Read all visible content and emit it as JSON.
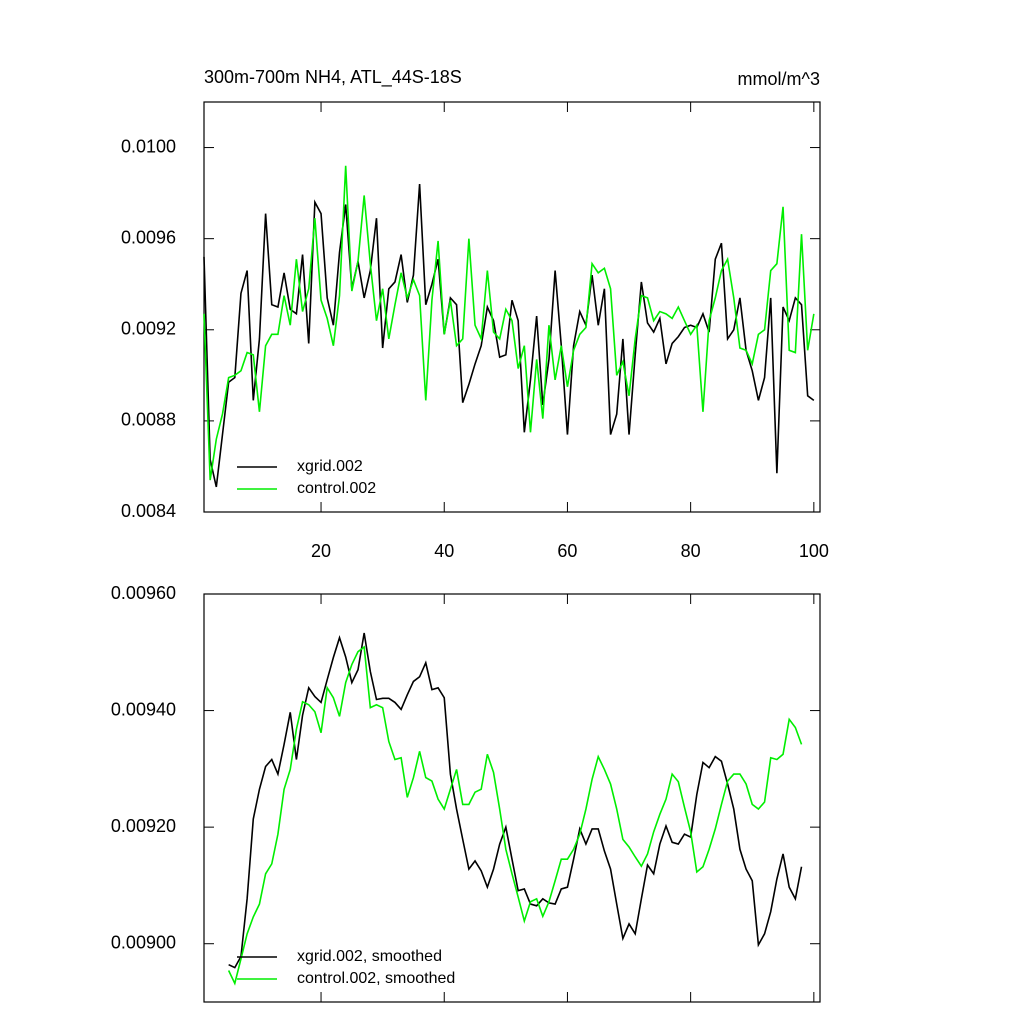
{
  "chart_data": [
    {
      "type": "line",
      "title": "300m-700m NH4, ATL_44S-18S",
      "units": "mmol/m^3",
      "x": [
        1,
        2,
        3,
        4,
        5,
        6,
        7,
        8,
        9,
        10,
        11,
        12,
        13,
        14,
        15,
        16,
        17,
        18,
        19,
        20,
        21,
        22,
        23,
        24,
        25,
        26,
        27,
        28,
        29,
        30,
        31,
        32,
        33,
        34,
        35,
        36,
        37,
        38,
        39,
        40,
        41,
        42,
        43,
        44,
        45,
        46,
        47,
        48,
        49,
        50,
        51,
        52,
        53,
        54,
        55,
        56,
        57,
        58,
        59,
        60,
        61,
        62,
        63,
        64,
        65,
        66,
        67,
        68,
        69,
        70,
        71,
        72,
        73,
        74,
        75,
        76,
        77,
        78,
        79,
        80,
        81,
        82,
        83,
        84,
        85,
        86,
        87,
        88,
        89,
        90,
        91,
        92,
        93,
        94,
        95,
        96,
        97,
        98,
        99,
        100
      ],
      "series": [
        {
          "name": "xgrid.002",
          "color": "#000000",
          "values": [
            0.00952,
            0.00863,
            0.00851,
            0.00874,
            0.00897,
            0.00899,
            0.00936,
            0.00946,
            0.00889,
            0.00916,
            0.00971,
            0.00931,
            0.0093,
            0.00945,
            0.00929,
            0.00927,
            0.00953,
            0.00914,
            0.00976,
            0.00971,
            0.00934,
            0.00922,
            0.00954,
            0.00975,
            0.00938,
            0.0095,
            0.00934,
            0.00946,
            0.00969,
            0.00912,
            0.00938,
            0.00941,
            0.00953,
            0.00932,
            0.00944,
            0.00984,
            0.00931,
            0.0094,
            0.00951,
            0.00918,
            0.00934,
            0.00931,
            0.00888,
            0.00896,
            0.00905,
            0.00913,
            0.0093,
            0.00924,
            0.00908,
            0.00909,
            0.00933,
            0.00924,
            0.00875,
            0.00898,
            0.00926,
            0.00887,
            0.00907,
            0.00946,
            0.00913,
            0.00874,
            0.00913,
            0.00928,
            0.00922,
            0.00944,
            0.00922,
            0.00938,
            0.00874,
            0.00883,
            0.00916,
            0.00874,
            0.00909,
            0.00941,
            0.00923,
            0.00919,
            0.00925,
            0.00905,
            0.00914,
            0.00917,
            0.00921,
            0.00922,
            0.00921,
            0.00927,
            0.00919,
            0.00951,
            0.00958,
            0.00916,
            0.0092,
            0.00934,
            0.00911,
            0.00902,
            0.00889,
            0.00899,
            0.00934,
            0.00857,
            0.0093,
            0.00924,
            0.00934,
            0.00931,
            0.00891,
            0.00889
          ]
        },
        {
          "name": "control.002",
          "color": "#00ee00",
          "values": [
            0.00927,
            0.00854,
            0.00872,
            0.00883,
            0.00899,
            0.009,
            0.00902,
            0.0091,
            0.00909,
            0.00884,
            0.00913,
            0.00918,
            0.00918,
            0.00935,
            0.00922,
            0.00951,
            0.00928,
            0.00938,
            0.00969,
            0.00933,
            0.00925,
            0.00913,
            0.00935,
            0.00992,
            0.00937,
            0.0095,
            0.00979,
            0.00949,
            0.00924,
            0.00938,
            0.00916,
            0.00931,
            0.00945,
            0.00934,
            0.00942,
            0.00935,
            0.00889,
            0.00933,
            0.00959,
            0.00918,
            0.00933,
            0.00913,
            0.00916,
            0.0096,
            0.00922,
            0.00916,
            0.00946,
            0.00919,
            0.00916,
            0.00929,
            0.00924,
            0.00903,
            0.00913,
            0.00875,
            0.00907,
            0.00881,
            0.00922,
            0.00898,
            0.00913,
            0.00895,
            0.00911,
            0.00918,
            0.00921,
            0.00949,
            0.00945,
            0.00947,
            0.00938,
            0.009,
            0.00906,
            0.00891,
            0.00916,
            0.00935,
            0.00934,
            0.00924,
            0.00928,
            0.00927,
            0.00925,
            0.0093,
            0.00924,
            0.00918,
            0.00922,
            0.00884,
            0.00924,
            0.00934,
            0.00946,
            0.00951,
            0.00934,
            0.00912,
            0.00911,
            0.00905,
            0.00918,
            0.0092,
            0.00946,
            0.00949,
            0.00974,
            0.00911,
            0.0091,
            0.00962,
            0.00911,
            0.00927
          ]
        }
      ],
      "xlim": [
        1,
        101
      ],
      "xticks": [
        20,
        40,
        60,
        80,
        100
      ],
      "ylim": [
        0.0084,
        0.0102
      ],
      "yticks": [
        0.0084,
        0.0088,
        0.0092,
        0.0096,
        {
          "value": 0.01,
          "label": "0.0100"
        }
      ],
      "legend": "lower left"
    },
    {
      "type": "line",
      "x": [
        5,
        6,
        7,
        8,
        9,
        10,
        11,
        12,
        13,
        14,
        15,
        16,
        17,
        18,
        19,
        20,
        21,
        22,
        23,
        24,
        25,
        26,
        27,
        28,
        29,
        30,
        31,
        32,
        33,
        34,
        35,
        36,
        37,
        38,
        39,
        40,
        41,
        42,
        43,
        44,
        45,
        46,
        47,
        48,
        49,
        50,
        51,
        52,
        53,
        54,
        55,
        56,
        57,
        58,
        59,
        60,
        61,
        62,
        63,
        64,
        65,
        66,
        67,
        68,
        69,
        70,
        71,
        72,
        73,
        74,
        75,
        76,
        77,
        78,
        79,
        80,
        81,
        82,
        83,
        84,
        85,
        86,
        87,
        88,
        89,
        90,
        91,
        92,
        93,
        94,
        95,
        96,
        97,
        98
      ],
      "series": [
        {
          "name": "xgrid.002, smoothed",
          "color": "#000000",
          "values": [
            0.008964,
            0.008959,
            0.008978,
            0.009077,
            0.009214,
            0.009265,
            0.009304,
            0.009316,
            0.009291,
            0.009342,
            0.009397,
            0.009316,
            0.009392,
            0.009439,
            0.009424,
            0.009414,
            0.009453,
            0.009491,
            0.009525,
            0.009492,
            0.009448,
            0.00947,
            0.009533,
            0.009467,
            0.009419,
            0.009421,
            0.009421,
            0.009414,
            0.009402,
            0.009427,
            0.00945,
            0.009458,
            0.009482,
            0.009436,
            0.009439,
            0.009422,
            0.009291,
            0.009231,
            0.009179,
            0.009128,
            0.009142,
            0.009125,
            0.009097,
            0.009128,
            0.009171,
            0.0092,
            0.009145,
            0.009091,
            0.009094,
            0.009068,
            0.009065,
            0.009077,
            0.00907,
            0.009068,
            0.009094,
            0.009097,
            0.009145,
            0.009197,
            0.009171,
            0.009197,
            0.009197,
            0.009159,
            0.009128,
            0.009068,
            0.009009,
            0.009034,
            0.009017,
            0.009077,
            0.009135,
            0.00912,
            0.009171,
            0.009202,
            0.009174,
            0.009171,
            0.009188,
            0.009183,
            0.009256,
            0.009311,
            0.009302,
            0.009321,
            0.009313,
            0.009274,
            0.009231,
            0.009162,
            0.009128,
            0.009108,
            0.008998,
            0.009017,
            0.009055,
            0.009111,
            0.009154,
            0.009097,
            0.009077,
            0.009132
          ]
        },
        {
          "name": "control.002, smoothed",
          "color": "#00ee00",
          "values": [
            0.008954,
            0.008932,
            0.008974,
            0.009017,
            0.009046,
            0.009068,
            0.00912,
            0.009137,
            0.009188,
            0.009265,
            0.009299,
            0.009368,
            0.009415,
            0.00941,
            0.009398,
            0.009362,
            0.009439,
            0.009422,
            0.00939,
            0.009448,
            0.009479,
            0.009501,
            0.009509,
            0.009405,
            0.00941,
            0.009405,
            0.009347,
            0.009316,
            0.009319,
            0.009251,
            0.009285,
            0.00933,
            0.009285,
            0.009279,
            0.009248,
            0.009231,
            0.009265,
            0.009299,
            0.009239,
            0.009239,
            0.00926,
            0.009265,
            0.009325,
            0.009294,
            0.009231,
            0.009162,
            0.00912,
            0.00908,
            0.009039,
            0.009072,
            0.009077,
            0.009047,
            0.009072,
            0.009108,
            0.009145,
            0.009145,
            0.009162,
            0.009188,
            0.009231,
            0.009282,
            0.009321,
            0.009299,
            0.009274,
            0.009231,
            0.009179,
            0.009166,
            0.009149,
            0.009133,
            0.009154,
            0.009192,
            0.009222,
            0.009248,
            0.009291,
            0.009278,
            0.009234,
            0.009192,
            0.009123,
            0.009132,
            0.009162,
            0.009197,
            0.009239,
            0.009279,
            0.009291,
            0.009291,
            0.009274,
            0.009239,
            0.009231,
            0.009243,
            0.009319,
            0.009316,
            0.009325,
            0.009385,
            0.009371,
            0.009342
          ]
        }
      ],
      "xlim": [
        1,
        101
      ],
      "xticks": [
        20,
        40,
        60,
        80,
        100
      ],
      "xtick_labels": false,
      "ylim": [
        0.0089,
        0.0096
      ],
      "yticks": [
        {
          "value": 0.009,
          "label": "0.00900"
        },
        {
          "value": 0.0092,
          "label": "0.00920"
        },
        {
          "value": 0.0094,
          "label": "0.00940"
        },
        {
          "value": 0.0096,
          "label": "0.00960"
        }
      ],
      "legend": "lower left"
    }
  ]
}
